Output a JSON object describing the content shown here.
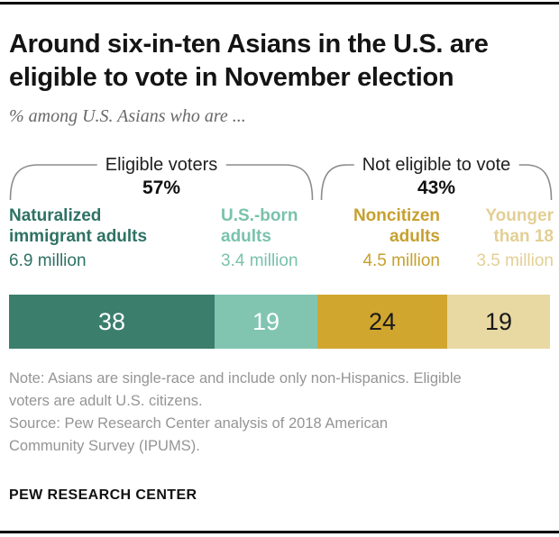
{
  "header": {
    "title": "Around six-in-ten Asians in the U.S. are eligible to vote in November election",
    "title_lines": [
      "Around six-in-ten Asians in the U.S. are",
      "eligible to vote in November election"
    ],
    "subtitle": "% among U.S. Asians who are ..."
  },
  "brackets": [
    {
      "label": "Eligible voters",
      "pct": "57%"
    },
    {
      "label": "Not eligible to vote",
      "pct": "43%"
    }
  ],
  "chart_data": {
    "type": "bar",
    "stacked": true,
    "orientation": "horizontal",
    "title": "Around six-in-ten Asians in the U.S. are eligible to vote in November election",
    "subtitle": "% among U.S. Asians who are ...",
    "unit": "%",
    "xlim": [
      0,
      100
    ],
    "categories": [
      "Naturalized immigrant adults",
      "U.S.-born adults",
      "Noncitizen adults",
      "Younger than 18"
    ],
    "values": [
      38,
      19,
      24,
      19
    ],
    "amounts": [
      "6.9 million",
      "3.4 million",
      "4.5 million",
      "3.5 million"
    ],
    "group_totals": [
      {
        "label": "Eligible voters",
        "value": 57,
        "spans": [
          "Naturalized immigrant adults",
          "U.S.-born adults"
        ]
      },
      {
        "label": "Not eligible to vote",
        "value": 43,
        "spans": [
          "Noncitizen adults",
          "Younger than 18"
        ]
      }
    ],
    "colors": [
      "#3b7e6c",
      "#81c5b1",
      "#d1a62f",
      "#e8d8a2"
    ],
    "label_colors": [
      "#2e7264",
      "#79c2ac",
      "#c7a02e",
      "#e3cf95"
    ],
    "number_colors": [
      "#ffffff",
      "#ffffff",
      "#1a1a1a",
      "#1a1a1a"
    ],
    "grid": false,
    "legend": "none"
  },
  "note": {
    "lines": [
      "Note: Asians are single-race and include only non-Hispanics. Eligible",
      "voters are adult U.S. citizens."
    ]
  },
  "source": {
    "lines": [
      "Source: Pew Research Center analysis of 2018 American",
      "Community Survey (IPUMS)."
    ]
  },
  "footer": {
    "brand": "PEW RESEARCH CENTER"
  }
}
